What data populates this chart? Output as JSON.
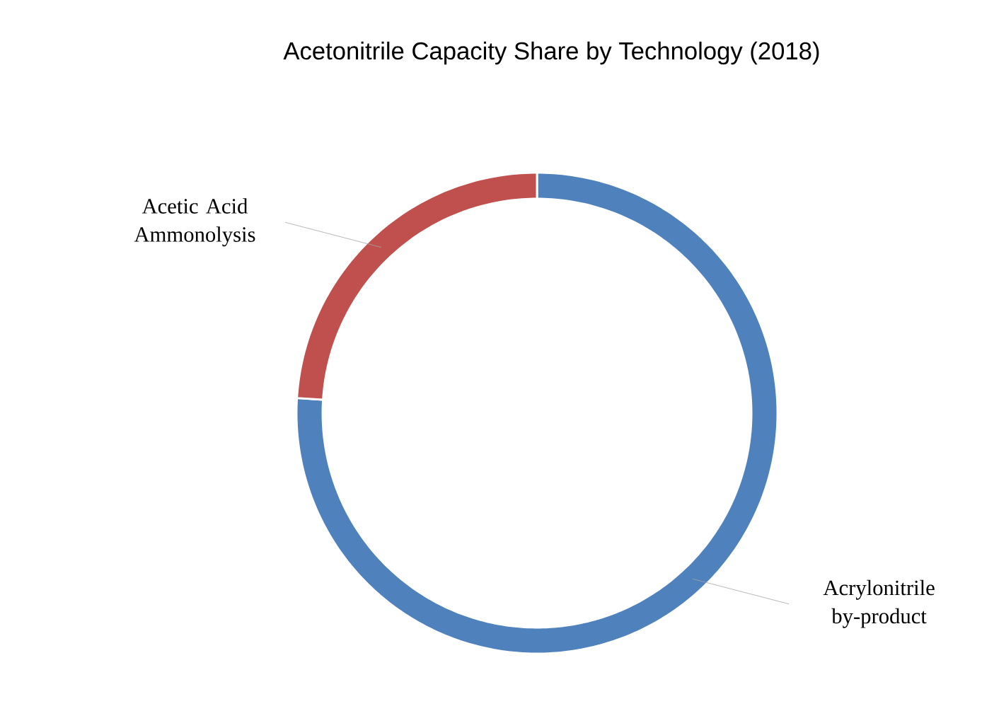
{
  "chart_data": {
    "type": "donut",
    "title": "Acetonitrile Capacity Share by Technology (2018)",
    "categories": [
      "Acrylonitrile by-product",
      "Acetic Acid Ammonolysis"
    ],
    "values": [
      76,
      24
    ],
    "colors": [
      "#4f81bd",
      "#c0504d"
    ]
  }
}
